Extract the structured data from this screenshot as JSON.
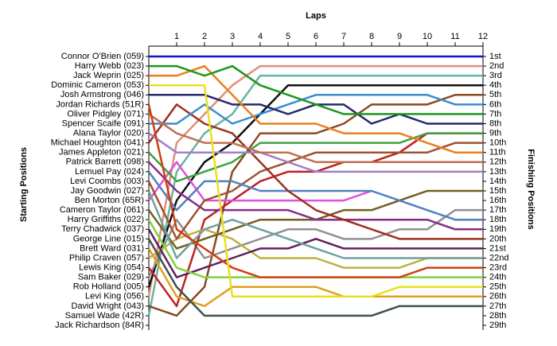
{
  "chart_data": {
    "type": "line",
    "x_label": "Laps",
    "y_label": "Starting Positions",
    "y2_label": "Finishing Positions",
    "x": [
      0,
      1,
      2,
      3,
      4,
      5,
      6,
      7,
      8,
      9,
      10,
      11,
      12
    ],
    "xlim": [
      0,
      12
    ],
    "xticks": [
      1,
      2,
      3,
      4,
      5,
      6,
      7,
      8,
      9,
      10,
      11,
      12
    ],
    "ylim": [
      1,
      29
    ],
    "y_reversed": true,
    "finishing_positions": [
      "1st",
      "2nd",
      "3rd",
      "4th",
      "5th",
      "6th",
      "7th",
      "8th",
      "9th",
      "10th",
      "11th",
      "12th",
      "13th",
      "14th",
      "15th",
      "16th",
      "17th",
      "18th",
      "19th",
      "20th",
      "21st",
      "22nd",
      "23rd",
      "24th",
      "25th",
      "26th",
      "27th",
      "28th",
      "29th"
    ],
    "series": [
      {
        "name": "Connor O'Brien (059)",
        "color": "#1414c8",
        "values": [
          1,
          1,
          1,
          1,
          1,
          1,
          1,
          1,
          1,
          1,
          1,
          1,
          1
        ]
      },
      {
        "name": "Harry Webb (023)",
        "color": "#1e961e",
        "values": [
          2,
          2,
          3,
          2,
          4,
          5,
          6,
          7,
          7,
          7,
          7,
          7,
          7
        ]
      },
      {
        "name": "Jack Weprin (025)",
        "color": "#e8801c",
        "values": [
          3,
          3,
          2,
          5,
          8,
          8,
          8,
          9,
          9,
          9,
          10,
          11,
          11
        ]
      },
      {
        "name": "Dominic Cameron (053)",
        "color": "#e8e020",
        "values": [
          4,
          4,
          4,
          26,
          26,
          26,
          26,
          26,
          26,
          25,
          25,
          25,
          25
        ]
      },
      {
        "name": "Josh Armstrong (046)",
        "color": "#28286e",
        "values": [
          5,
          5,
          5,
          6,
          6,
          7,
          6,
          6,
          8,
          7,
          8,
          8,
          8
        ]
      },
      {
        "name": "Jordan Richards (51R)",
        "color": "#d04010",
        "values": [
          6,
          19,
          21,
          23,
          24,
          24,
          24,
          24,
          24,
          24,
          23,
          23,
          23
        ]
      },
      {
        "name": "Oliver Pidgley (071)",
        "color": "#c07050",
        "values": [
          7,
          9,
          10,
          10,
          11,
          11,
          12,
          12,
          12,
          12,
          12,
          12,
          12
        ]
      },
      {
        "name": "Spencer Scaife (091)",
        "color": "#3c8cd0",
        "values": [
          8,
          8,
          6,
          8,
          7,
          6,
          5,
          5,
          5,
          5,
          5,
          6,
          6
        ]
      },
      {
        "name": "Alana Taylor (020)",
        "color": "#a080c8",
        "values": [
          9,
          11,
          11,
          11,
          11,
          12,
          13,
          13,
          13,
          13,
          13,
          13,
          13
        ]
      },
      {
        "name": "Michael Houghton (041)",
        "color": "#a03020",
        "values": [
          10,
          6,
          8,
          9,
          12,
          15,
          17,
          18,
          19,
          20,
          20,
          20,
          20
        ]
      },
      {
        "name": "James Appleton (021)",
        "color": "#40a040",
        "values": [
          11,
          14,
          13,
          12,
          10,
          10,
          10,
          10,
          10,
          10,
          9,
          9,
          9
        ]
      },
      {
        "name": "Patrick Barrett (098)",
        "color": "#8a2a8a",
        "values": [
          12,
          15,
          17,
          17,
          17,
          17,
          18,
          18,
          18,
          18,
          18,
          19,
          19
        ]
      },
      {
        "name": "Lemuel Pay (024)",
        "color": "#5080c0",
        "values": [
          13,
          17,
          14,
          14,
          15,
          15,
          15,
          15,
          15,
          16,
          17,
          18,
          18
        ]
      },
      {
        "name": "Levi Coombs (003)",
        "color": "#a05030",
        "values": [
          14,
          20,
          16,
          15,
          13,
          12,
          11,
          11,
          11,
          11,
          11,
          10,
          10
        ]
      },
      {
        "name": "Jay Goodwin (027)",
        "color": "#70a0a0",
        "values": [
          15,
          22,
          19,
          18,
          19,
          20,
          21,
          22,
          22,
          22,
          22,
          22,
          22
        ]
      },
      {
        "name": "Ben Morton (65R)",
        "color": "#e050e0",
        "values": [
          16,
          12,
          16,
          16,
          16,
          16,
          16,
          16,
          15,
          null,
          null,
          null,
          null
        ]
      },
      {
        "name": "Cameron Taylor (061)",
        "color": "#706020",
        "values": [
          17,
          21,
          20,
          19,
          18,
          18,
          18,
          17,
          17,
          16,
          15,
          15,
          15
        ]
      },
      {
        "name": "Harry Griffiths (022)",
        "color": "#80d040",
        "values": [
          18,
          23,
          24,
          24,
          24,
          24,
          24,
          24,
          24,
          24,
          24,
          24,
          24
        ]
      },
      {
        "name": "Terry Chadwick (037)",
        "color": "#602060",
        "values": [
          19,
          24,
          23,
          22,
          21,
          21,
          20,
          21,
          21,
          21,
          21,
          21,
          21
        ]
      },
      {
        "name": "George Line (015)",
        "color": "#405050",
        "values": [
          20,
          25,
          28,
          28,
          28,
          28,
          28,
          28,
          28,
          27,
          27,
          27,
          27
        ]
      },
      {
        "name": "Brett Ward (031)",
        "color": "#e0a020",
        "values": [
          21,
          26,
          27,
          25,
          25,
          25,
          25,
          26,
          26,
          26,
          26,
          26,
          26
        ]
      },
      {
        "name": "Philip Craven (057)",
        "color": "#c0b040",
        "values": [
          22,
          20,
          19,
          20,
          22,
          22,
          22,
          23,
          23,
          23,
          22,
          22,
          22
        ]
      },
      {
        "name": "Lewis King (054)",
        "color": "#c02020",
        "values": [
          23,
          27,
          18,
          16,
          14,
          13,
          13,
          12,
          12,
          11,
          9,
          9,
          9
        ]
      },
      {
        "name": "Sam Baker (029)",
        "color": "#909090",
        "values": [
          24,
          18,
          22,
          21,
          20,
          19,
          19,
          20,
          20,
          19,
          19,
          17,
          17
        ]
      },
      {
        "name": "Rob Holland (005)",
        "color": "#101010",
        "values": [
          25,
          16,
          12,
          10,
          7,
          4,
          4,
          4,
          4,
          4,
          4,
          4,
          4
        ]
      },
      {
        "name": "Levi King (056)",
        "color": "#e0907a",
        "values": [
          26,
          10,
          7,
          4,
          2,
          2,
          2,
          2,
          2,
          2,
          2,
          2,
          2
        ]
      },
      {
        "name": "David Wright (043)",
        "color": "#8a4a20",
        "values": [
          27,
          28,
          25,
          13,
          9,
          9,
          9,
          8,
          6,
          6,
          6,
          5,
          5
        ]
      },
      {
        "name": "Samuel Wade (42R)",
        "color": "#68b4a0",
        "values": [
          28,
          13,
          9,
          7,
          3,
          3,
          3,
          3,
          3,
          3,
          3,
          3,
          3
        ]
      },
      {
        "name": "Jack Richardson (84R)",
        "color": "#3050a0",
        "values": [
          29,
          null,
          null,
          null,
          null,
          null,
          null,
          null,
          null,
          null,
          null,
          null,
          null
        ]
      }
    ]
  }
}
